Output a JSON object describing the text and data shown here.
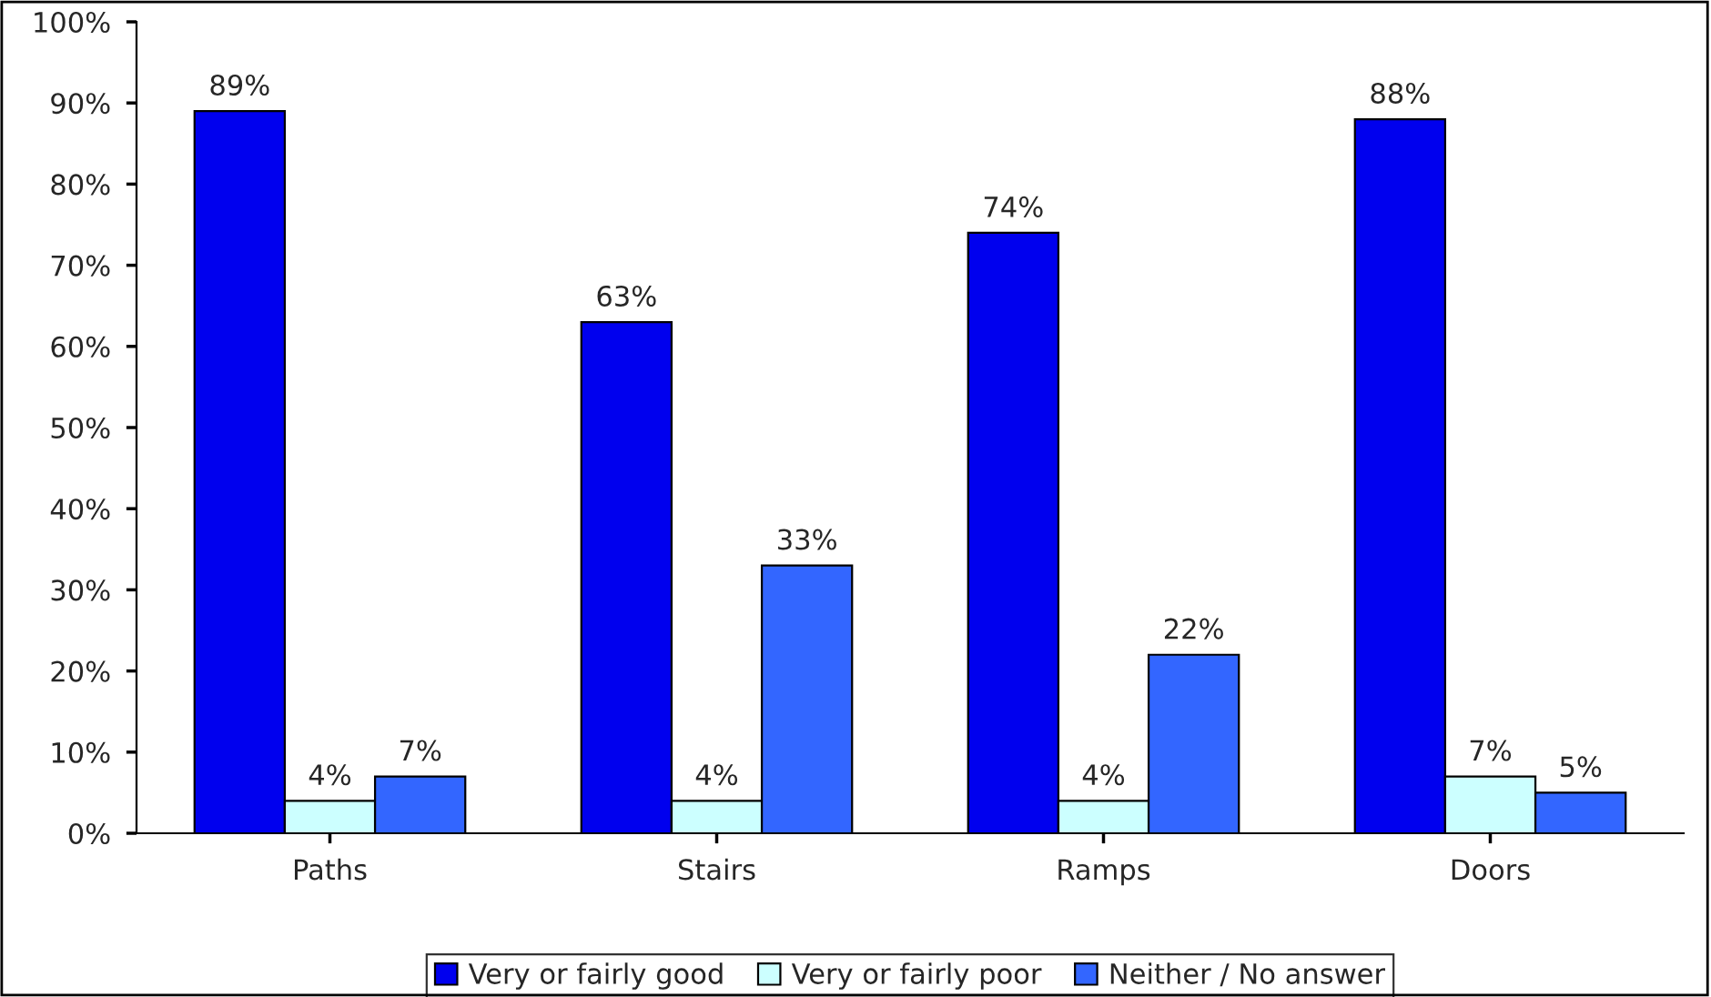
{
  "chart_data": {
    "type": "bar",
    "categories": [
      "Paths",
      "Stairs",
      "Ramps",
      "Doors"
    ],
    "series": [
      {
        "name": "Very or fairly good",
        "color": "#0000ee",
        "values": [
          89,
          63,
          74,
          88
        ]
      },
      {
        "name": "Very or fairly poor",
        "color": "#ccffff",
        "values": [
          4,
          4,
          4,
          7
        ]
      },
      {
        "name": "Neither / No answer",
        "color": "#3366ff",
        "values": [
          7,
          33,
          22,
          5
        ]
      }
    ],
    "value_labels": [
      [
        "89%",
        "63%",
        "74%",
        "88%"
      ],
      [
        "4%",
        "4%",
        "4%",
        "7%"
      ],
      [
        "7%",
        "33%",
        "22%",
        "5%"
      ]
    ],
    "ylim": [
      0,
      100
    ],
    "yticks": [
      {
        "value": 0,
        "label": "0%"
      },
      {
        "value": 10,
        "label": "10%"
      },
      {
        "value": 20,
        "label": "20%"
      },
      {
        "value": 30,
        "label": "30%"
      },
      {
        "value": 40,
        "label": "40%"
      },
      {
        "value": 50,
        "label": "50%"
      },
      {
        "value": 60,
        "label": "60%"
      },
      {
        "value": 70,
        "label": "70%"
      },
      {
        "value": 80,
        "label": "80%"
      },
      {
        "value": 90,
        "label": "90%"
      },
      {
        "value": 100,
        "label": "100%"
      }
    ],
    "grid": false,
    "legend": "bottom"
  }
}
